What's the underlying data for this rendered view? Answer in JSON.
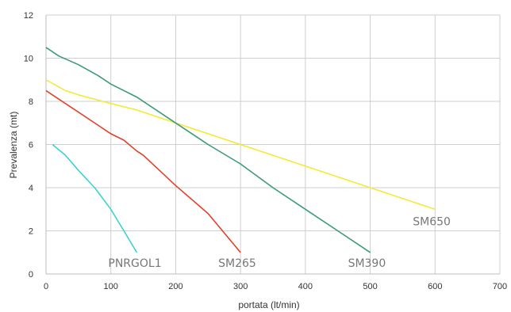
{
  "chart_data": {
    "type": "line",
    "xlabel": "portata (lt/min)",
    "ylabel": "Prevalenza (mt)",
    "xlim": [
      0,
      700
    ],
    "ylim": [
      0,
      12
    ],
    "x_ticks": [
      0,
      100,
      200,
      300,
      400,
      500,
      600,
      700
    ],
    "y_ticks": [
      0,
      2,
      4,
      6,
      8,
      10,
      12
    ],
    "grid": true,
    "legend": "labels placed at end of each curve",
    "series": [
      {
        "name": "SM650",
        "color": "#f2e93a",
        "points": [
          [
            0,
            9
          ],
          [
            30,
            8.5
          ],
          [
            50,
            8.3
          ],
          [
            100,
            7.9
          ],
          [
            140,
            7.6
          ],
          [
            200,
            7.0
          ],
          [
            300,
            6.0
          ],
          [
            400,
            5.0
          ],
          [
            500,
            4.0
          ],
          [
            600,
            3.0
          ]
        ]
      },
      {
        "name": "SM390",
        "color": "#3d9a78",
        "points": [
          [
            0,
            10.5
          ],
          [
            20,
            10.1
          ],
          [
            50,
            9.7
          ],
          [
            80,
            9.2
          ],
          [
            100,
            8.8
          ],
          [
            140,
            8.2
          ],
          [
            200,
            7.0
          ],
          [
            250,
            6.0
          ],
          [
            300,
            5.1
          ],
          [
            350,
            4.0
          ],
          [
            400,
            3.0
          ],
          [
            450,
            2.0
          ],
          [
            500,
            1.0
          ]
        ]
      },
      {
        "name": "SM265",
        "color": "#e0412b",
        "points": [
          [
            0,
            8.5
          ],
          [
            20,
            8.1
          ],
          [
            40,
            7.7
          ],
          [
            80,
            6.9
          ],
          [
            100,
            6.5
          ],
          [
            120,
            6.2
          ],
          [
            140,
            5.7
          ],
          [
            150,
            5.5
          ],
          [
            200,
            4.1
          ],
          [
            250,
            2.8
          ],
          [
            300,
            1.0
          ]
        ]
      },
      {
        "name": "PNRGOL1",
        "color": "#3fd1d1",
        "points": [
          [
            10,
            6.0
          ],
          [
            30,
            5.5
          ],
          [
            50,
            4.8
          ],
          [
            75,
            4.0
          ],
          [
            100,
            3.0
          ],
          [
            120,
            2.0
          ],
          [
            140,
            1.0
          ]
        ]
      }
    ]
  }
}
